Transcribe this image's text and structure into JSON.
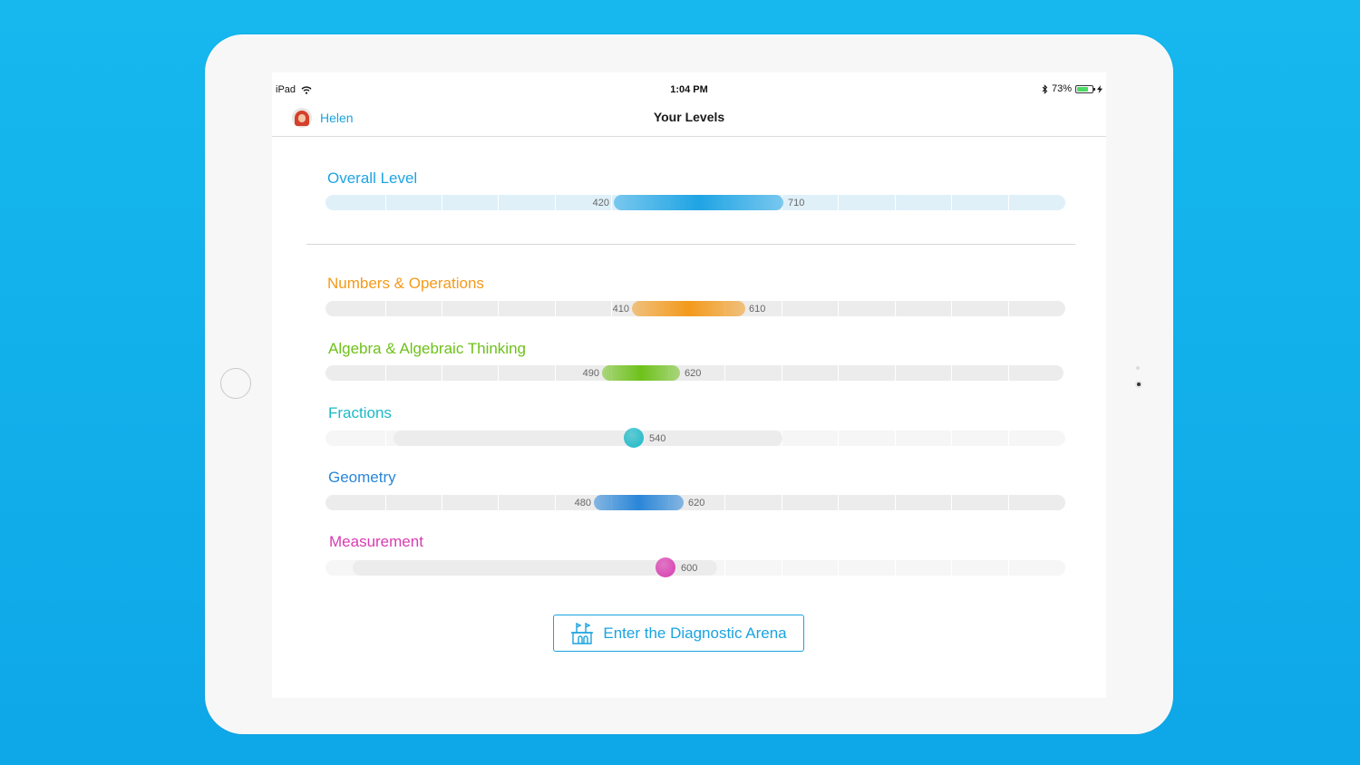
{
  "status_bar": {
    "device": "iPad",
    "time": "1:04 PM",
    "battery": "73%",
    "battery_fraction": 0.73
  },
  "nav": {
    "user_name": "Helen",
    "title": "Your Levels"
  },
  "levels": {
    "overall": {
      "label": "Overall Level",
      "low": "420",
      "high": "710",
      "color": "#1fa4e4"
    },
    "numbers": {
      "label": "Numbers & Operations",
      "low": "410",
      "high": "610",
      "color": "#f39a1b"
    },
    "algebra": {
      "label": "Algebra & Algebraic Thinking",
      "low": "490",
      "high": "620",
      "color": "#6ec11a"
    },
    "fractions": {
      "label": "Fractions",
      "value": "540",
      "color": "#1ab9c7"
    },
    "geometry": {
      "label": "Geometry",
      "low": "480",
      "high": "620",
      "color": "#2a86d8"
    },
    "measurement": {
      "label": "Measurement",
      "value": "600",
      "color": "#d83cb0"
    }
  },
  "arena_button": {
    "label": "Enter the Diagnostic Arena",
    "icon": "castle-icon"
  }
}
